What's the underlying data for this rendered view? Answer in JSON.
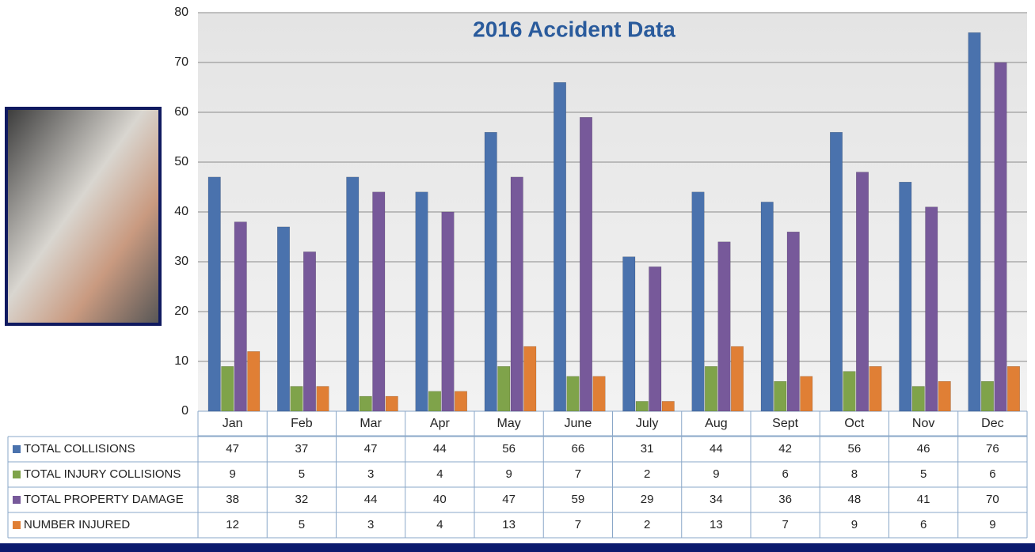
{
  "chart_data": {
    "type": "bar",
    "title": "2016 Accident Data",
    "categories": [
      "Jan",
      "Feb",
      "Mar",
      "Apr",
      "May",
      "June",
      "July",
      "Aug",
      "Sept",
      "Oct",
      "Nov",
      "Dec"
    ],
    "series": [
      {
        "name": "TOTAL COLLISIONS",
        "color": "#4a72ad",
        "values": [
          47,
          37,
          47,
          44,
          56,
          66,
          31,
          44,
          42,
          56,
          46,
          76
        ]
      },
      {
        "name": "TOTAL INJURY COLLISIONS",
        "color": "#7fa34a",
        "values": [
          9,
          5,
          3,
          4,
          9,
          7,
          2,
          9,
          6,
          8,
          5,
          6
        ]
      },
      {
        "name": "TOTAL PROPERTY DAMAGE",
        "color": "#77599a",
        "values": [
          38,
          32,
          44,
          40,
          47,
          59,
          29,
          34,
          36,
          48,
          41,
          70
        ]
      },
      {
        "name": "NUMBER INJURED",
        "color": "#e07f35",
        "values": [
          12,
          5,
          3,
          4,
          13,
          7,
          2,
          13,
          7,
          9,
          6,
          9
        ]
      }
    ],
    "ylim": [
      0,
      80
    ],
    "yticks": [
      0,
      10,
      20,
      30,
      40,
      50,
      60,
      70,
      80
    ],
    "grid": true
  }
}
